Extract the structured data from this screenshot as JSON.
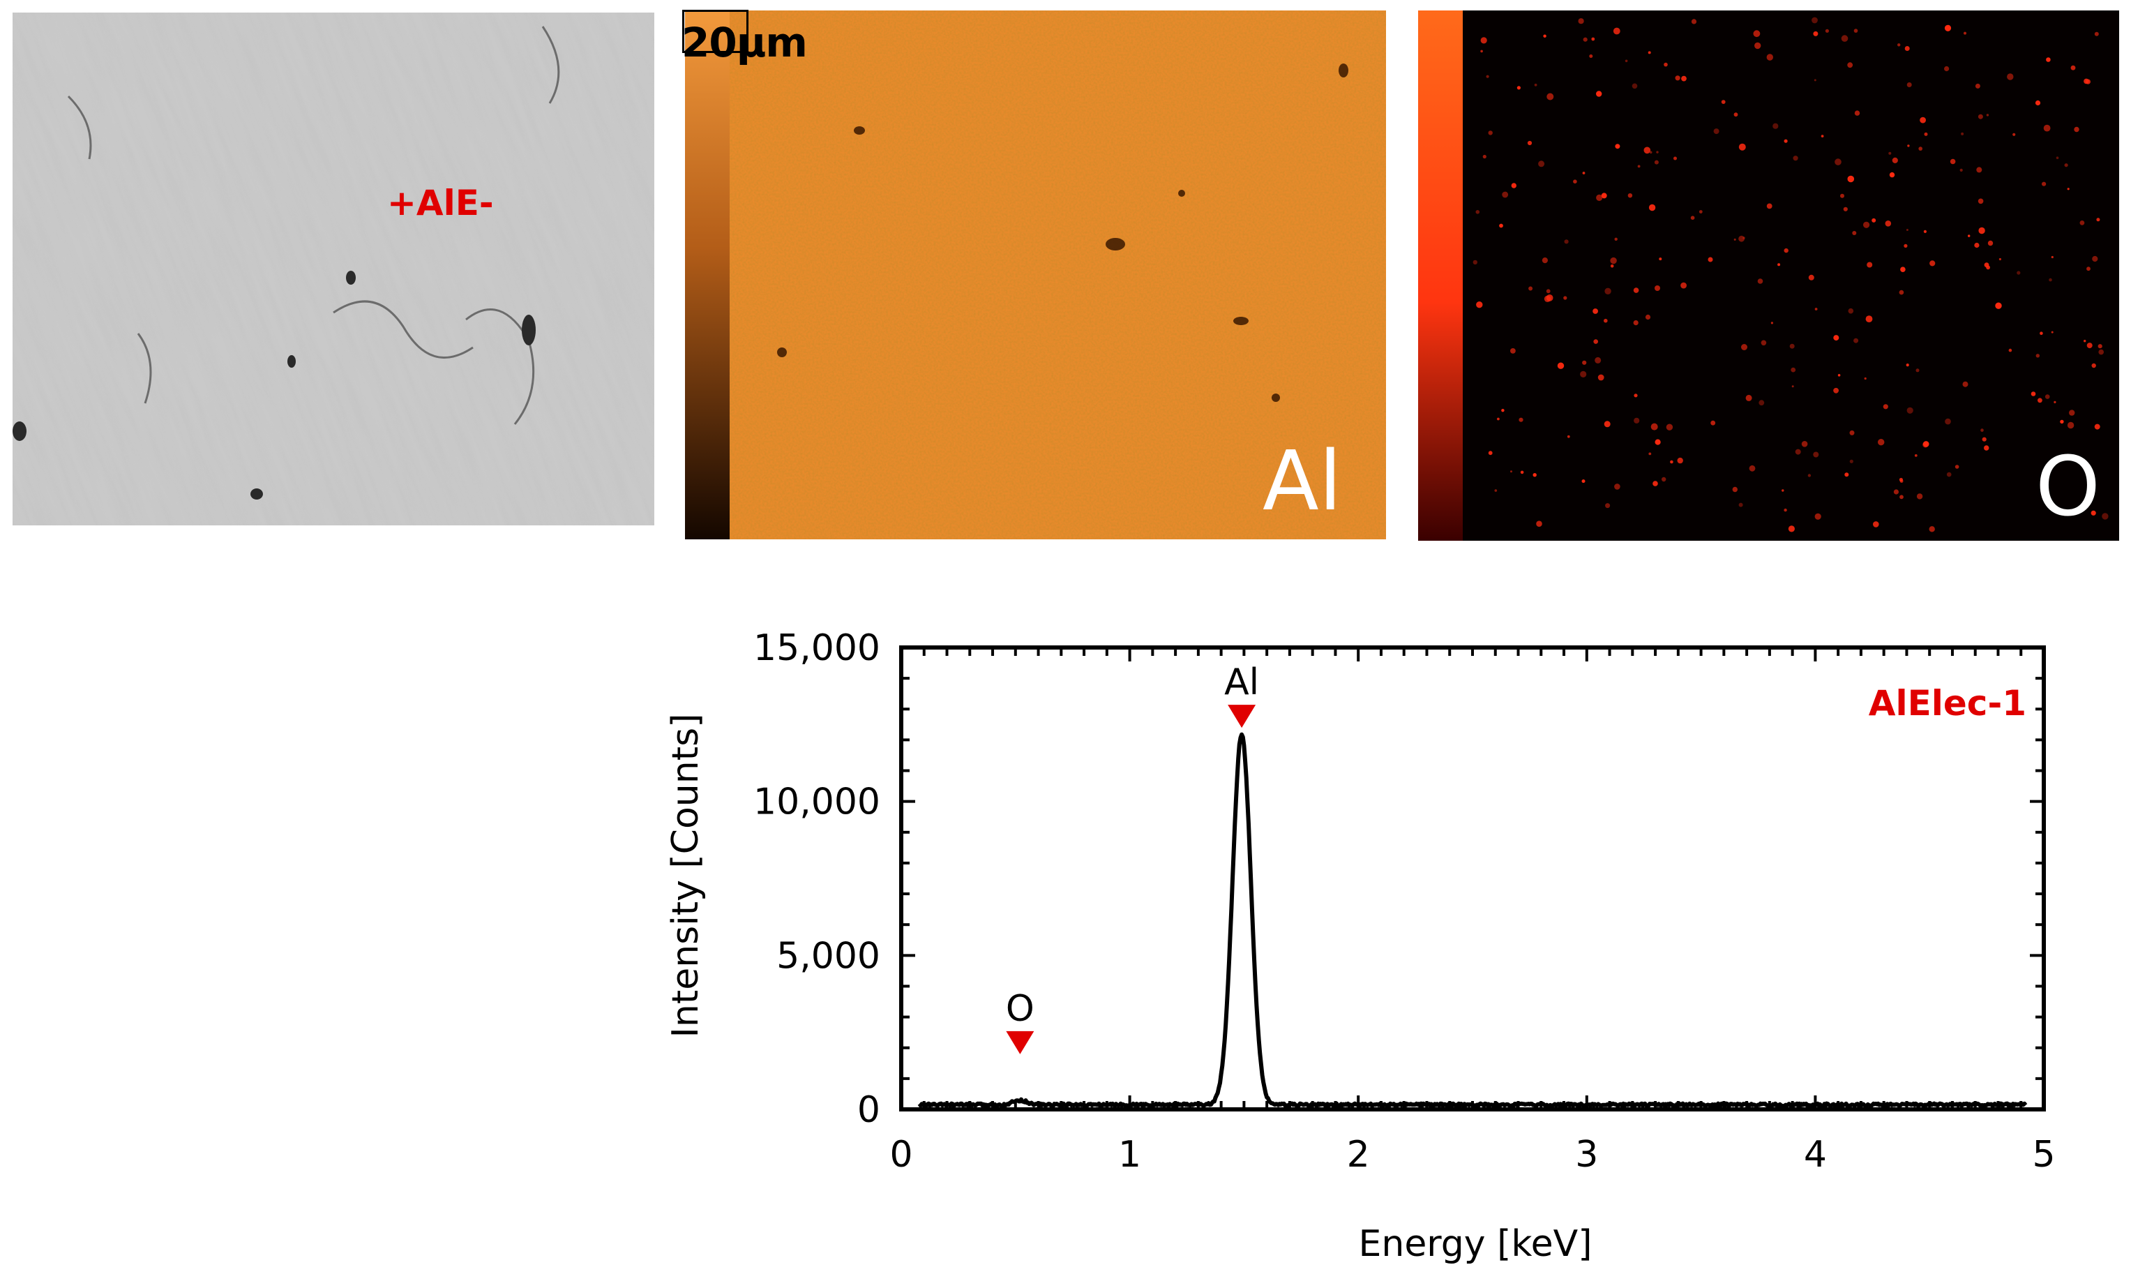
{
  "sem_image": {
    "label": "+AlE-",
    "scale_bar": "20μm"
  },
  "maps": [
    {
      "element": "Al",
      "colormap": [
        "#1a0a00",
        "#7a3a0a",
        "#e07a20",
        "#f39a3c"
      ]
    },
    {
      "element": "O",
      "colormap": [
        "#200000",
        "#a01a00",
        "#ff3b10",
        "#ff6a1a"
      ]
    }
  ],
  "chart_data": {
    "type": "line",
    "title": "",
    "xlabel": "Energy [keV]",
    "ylabel": "Intensity [Counts]",
    "xlim": [
      0,
      5
    ],
    "ylim": [
      0,
      15000
    ],
    "x_ticks": [
      "0",
      "1",
      "2",
      "3",
      "4",
      "5"
    ],
    "y_ticks": [
      "0",
      "5,000",
      "10,000",
      "15,000"
    ],
    "series_label": "AlElec-1",
    "series_label_color": "#e00000",
    "line_color": "#000000",
    "peaks": [
      {
        "label": "O",
        "energy": 0.52,
        "marker_y": 2200,
        "intensity": 300
      },
      {
        "label": "Al",
        "energy": 1.49,
        "marker_y": 12800,
        "intensity": 12200
      }
    ],
    "baseline": 150,
    "grid": false
  }
}
